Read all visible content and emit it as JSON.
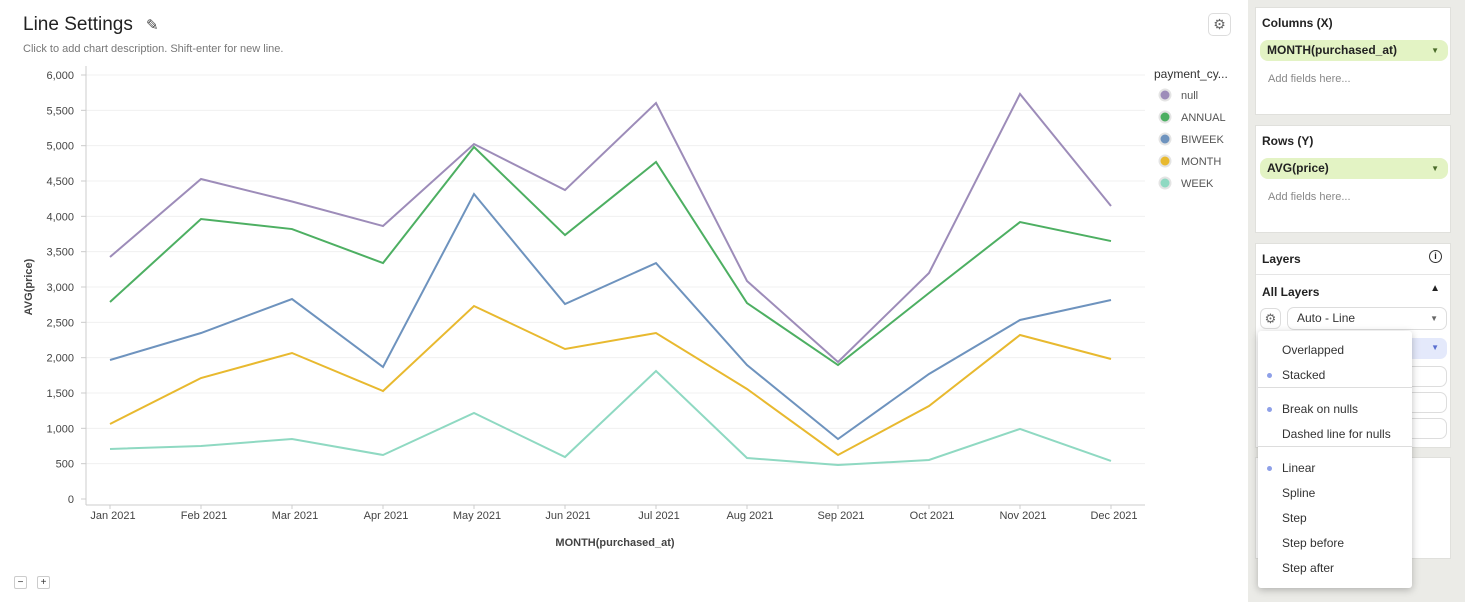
{
  "header": {
    "title": "Line Settings",
    "description": "Click to add chart description. Shift-enter for new line.",
    "edit_icon": "pencil-icon",
    "settings_icon": "gear-icon"
  },
  "zoom_controls": {
    "minus": "−",
    "plus": "+"
  },
  "chart_data": {
    "type": "line",
    "title": "",
    "xlabel": "MONTH(purchased_at)",
    "ylabel": "AVG(price)",
    "categories": [
      "Jan 2021",
      "Feb 2021",
      "Mar 2021",
      "Apr 2021",
      "May 2021",
      "Jun 2021",
      "Jul 2021",
      "Aug 2021",
      "Sep 2021",
      "Oct 2021",
      "Nov 2021",
      "Dec 2021"
    ],
    "ylim": [
      0,
      6000
    ],
    "yticks": [
      0,
      500,
      1000,
      1500,
      2000,
      2500,
      3000,
      3500,
      4000,
      4500,
      5000,
      5500,
      6000
    ],
    "ytick_labels": [
      "0",
      "500",
      "1,000",
      "1,500",
      "2,000",
      "2,500",
      "3,000",
      "3,500",
      "4,000",
      "4,500",
      "5,000",
      "5,500",
      "6,000"
    ],
    "grid": true,
    "legend_title": "payment_cy...",
    "legend_position": "right",
    "series": [
      {
        "name": "null",
        "color": "#9d8cb9",
        "values": [
          3425,
          4528,
          4210,
          3863,
          5023,
          4372,
          5603,
          3085,
          1939,
          3198,
          5731,
          4146
        ]
      },
      {
        "name": "ANNUAL",
        "color": "#4daf62",
        "values": [
          2788,
          3962,
          3820,
          3339,
          4981,
          3735,
          4769,
          2773,
          1896,
          2915,
          3919,
          3650
        ]
      },
      {
        "name": "BIWEEK",
        "color": "#6e93be",
        "values": [
          1967,
          2349,
          2830,
          1868,
          4316,
          2759,
          3339,
          1896,
          849,
          1769,
          2533,
          2816
        ]
      },
      {
        "name": "MONTH",
        "color": "#e8b92f",
        "values": [
          1061,
          1712,
          2066,
          1528,
          2731,
          2123,
          2349,
          1557,
          623,
          1316,
          2321,
          1981
        ]
      },
      {
        "name": "WEEK",
        "color": "#8fd9c2",
        "values": [
          708,
          750,
          849,
          623,
          1217,
          594,
          1811,
          580,
          481,
          552,
          991,
          538
        ]
      }
    ]
  },
  "sidebar": {
    "columns": {
      "title": "Columns (X)",
      "field": "MONTH(purchased_at)",
      "placeholder": "Add fields here..."
    },
    "rows": {
      "title": "Rows (Y)",
      "field": "AVG(price)",
      "placeholder": "Add fields here..."
    },
    "layers": {
      "title": "Layers",
      "info_icon": "info-icon",
      "all_layers": "All Layers",
      "chart_type": "Auto - Line"
    }
  },
  "dropdown": {
    "groups": [
      [
        {
          "label": "Overlapped",
          "selected": false
        },
        {
          "label": "Stacked",
          "selected": true
        }
      ],
      [
        {
          "label": "Break on nulls",
          "selected": true
        },
        {
          "label": "Dashed line for nulls",
          "selected": false
        }
      ],
      [
        {
          "label": "Linear",
          "selected": true
        },
        {
          "label": "Spline",
          "selected": false
        },
        {
          "label": "Step",
          "selected": false
        },
        {
          "label": "Step before",
          "selected": false
        },
        {
          "label": "Step after",
          "selected": false
        }
      ]
    ]
  }
}
